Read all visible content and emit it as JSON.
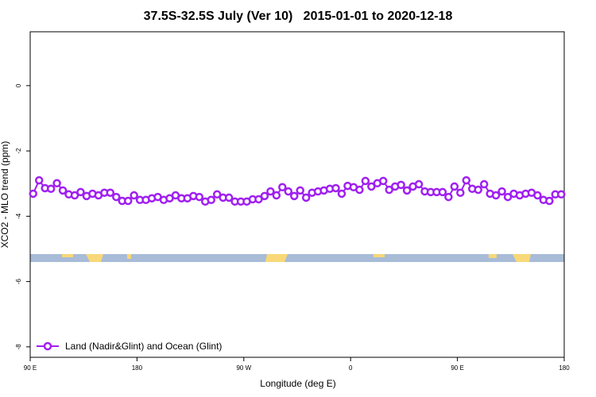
{
  "chart_data": {
    "type": "line",
    "title": "37.5S-32.5S July (Ver 10)   2015-01-01 to 2020-12-18",
    "x_label": "Longitude (deg E)",
    "y_label": "XCO2 - MLO trend (ppm)",
    "x": [
      92.5,
      97.5,
      102.5,
      107.5,
      112.5,
      117.5,
      122.5,
      127.5,
      132.5,
      137.5,
      142.5,
      147.5,
      152.5,
      157.5,
      162.5,
      167.5,
      172.5,
      177.5,
      182.5,
      187.5,
      192.5,
      197.5,
      202.5,
      207.5,
      212.5,
      217.5,
      222.5,
      227.5,
      232.5,
      237.5,
      242.5,
      247.5,
      252.5,
      257.5,
      262.5,
      267.5,
      272.5,
      277.5,
      282.5,
      287.5,
      292.5,
      297.5,
      302.5,
      307.5,
      312.5,
      317.5,
      322.5,
      327.5,
      332.5,
      337.5,
      342.5,
      347.5,
      352.5,
      357.5,
      362.5,
      367.5,
      372.5,
      377.5,
      382.5,
      387.5,
      392.5,
      397.5,
      402.5,
      407.5,
      412.5,
      417.5,
      422.5,
      427.5,
      432.5,
      437.5,
      442.5,
      447.5,
      452.5,
      457.5,
      462.5,
      467.5,
      472.5,
      477.5,
      482.5,
      487.5,
      492.5,
      497.5,
      502.5,
      507.5,
      512.5,
      517.5,
      522.5,
      527.5,
      532.5,
      537.5
    ],
    "series": [
      {
        "name": "Land (Nadir&Glint) and Ocean (Glint)",
        "color": "#a020f0",
        "values": [
          -3.31,
          -2.9,
          -3.14,
          -3.16,
          -2.99,
          -3.21,
          -3.33,
          -3.36,
          -3.26,
          -3.38,
          -3.31,
          -3.36,
          -3.28,
          -3.28,
          -3.41,
          -3.53,
          -3.53,
          -3.36,
          -3.5,
          -3.5,
          -3.45,
          -3.41,
          -3.5,
          -3.45,
          -3.36,
          -3.45,
          -3.45,
          -3.38,
          -3.41,
          -3.55,
          -3.5,
          -3.33,
          -3.43,
          -3.43,
          -3.55,
          -3.55,
          -3.55,
          -3.48,
          -3.48,
          -3.38,
          -3.24,
          -3.36,
          -3.11,
          -3.24,
          -3.38,
          -3.21,
          -3.43,
          -3.28,
          -3.24,
          -3.21,
          -3.16,
          -3.14,
          -3.31,
          -3.07,
          -3.11,
          -3.19,
          -2.92,
          -3.09,
          -2.99,
          -2.92,
          -3.19,
          -3.09,
          -3.04,
          -3.21,
          -3.09,
          -3.02,
          -3.24,
          -3.26,
          -3.26,
          -3.26,
          -3.41,
          -3.09,
          -3.28,
          -2.9,
          -3.16,
          -3.19,
          -3.02,
          -3.31,
          -3.36,
          -3.24,
          -3.41,
          -3.31,
          -3.36,
          -3.31,
          -3.28,
          -3.36,
          -3.5,
          -3.53,
          -3.33,
          -3.33
        ]
      }
    ],
    "xlim": [
      90,
      540
    ],
    "xticks": [
      {
        "value": 90,
        "label": "90 E"
      },
      {
        "value": 180,
        "label": "180"
      },
      {
        "value": 270,
        "label": "90 W"
      },
      {
        "value": 360,
        "label": "0"
      },
      {
        "value": 450,
        "label": "90 E"
      },
      {
        "value": 540,
        "label": "180"
      }
    ],
    "ylim": [
      -8.32,
      1.65
    ],
    "yticks": [
      0,
      -2,
      -4,
      -6,
      -8
    ],
    "legend": "bottom-left"
  }
}
